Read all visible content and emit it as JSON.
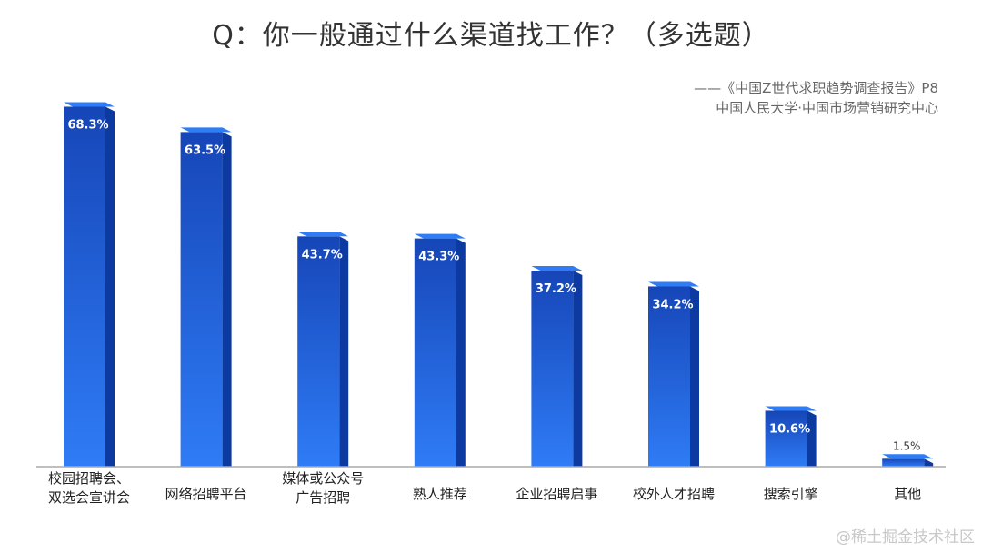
{
  "chart_data": {
    "type": "bar",
    "title": "Q：你一般通过什么渠道找工作？（多选题）",
    "source_line1": "——《中国Z世代求职趋势调查报告》P8",
    "source_line2": "中国人民大学·中国市场营销研究中心",
    "categories": [
      [
        "校园招聘会、",
        "双选会宣讲会"
      ],
      [
        "网络招聘平台"
      ],
      [
        "媒体或公众号",
        "广告招聘"
      ],
      [
        "熟人推荐"
      ],
      [
        "企业招聘启事"
      ],
      [
        "校外人才招聘"
      ],
      [
        "搜索引擎"
      ],
      [
        "其他"
      ]
    ],
    "values": [
      68.3,
      63.5,
      43.7,
      43.3,
      37.2,
      34.2,
      10.6,
      1.5
    ],
    "data_labels": [
      "68.3%",
      "63.5%",
      "43.7%",
      "43.3%",
      "37.2%",
      "34.2%",
      "10.6%",
      "1.5%"
    ],
    "ylim": [
      0,
      72
    ],
    "grid": false,
    "colors": {
      "bar_top": "#2f7df5",
      "bar_front_top": "#1646b8",
      "bar_front_bottom": "#2f7cf6",
      "bar_side": "#0d3aa0",
      "axis": "#aaaaaa",
      "category_text": "#222222",
      "label_inside": "#ffffff",
      "label_outside": "#333333"
    }
  },
  "watermark": "@稀土掘金技术社区"
}
